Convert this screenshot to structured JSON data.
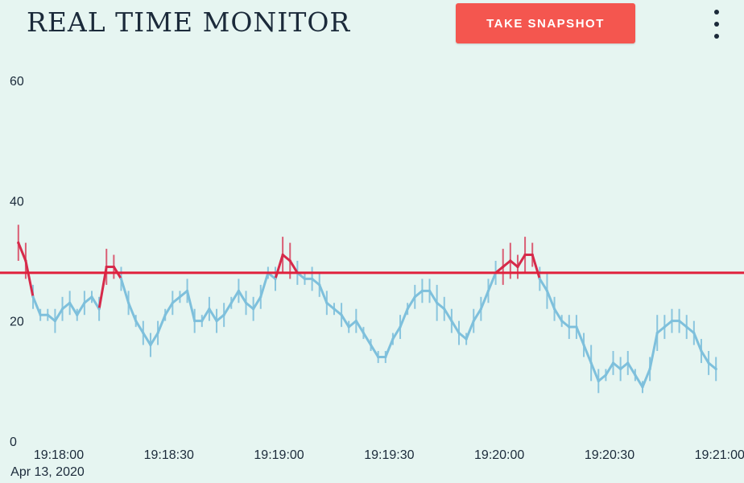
{
  "header": {
    "title": "REAL TIME MONITOR",
    "snapshot_label": "TAKE SNAPSHOT",
    "menu_icon": "vertical-dots-icon"
  },
  "colors": {
    "background": "#e6f5f1",
    "normal_series": "#7ec0dc",
    "alert_series": "#d62a4a",
    "threshold": "#e0203c",
    "button": "#f4564f"
  },
  "chart_data": {
    "type": "line",
    "ylim": [
      0,
      60
    ],
    "yticks": [
      0,
      20,
      40,
      60
    ],
    "xlim": [
      "19:17:44",
      "19:21:04"
    ],
    "xticks": [
      {
        "value": "19:18:00",
        "label": "19:18:00",
        "sublabel": "Apr 13, 2020"
      },
      {
        "value": "19:18:30",
        "label": "19:18:30",
        "sublabel": ""
      },
      {
        "value": "19:19:00",
        "label": "19:19:00",
        "sublabel": ""
      },
      {
        "value": "19:19:30",
        "label": "19:19:30",
        "sublabel": ""
      },
      {
        "value": "19:20:00",
        "label": "19:20:00",
        "sublabel": ""
      },
      {
        "value": "19:20:30",
        "label": "19:20:30",
        "sublabel": ""
      },
      {
        "value": "19:21:00",
        "label": "19:21:00",
        "sublabel": ""
      }
    ],
    "threshold": 28,
    "series": [
      {
        "x": [
          "19:17:49",
          "19:17:51",
          "19:17:53",
          "19:17:55",
          "19:17:57",
          "19:17:59",
          "19:18:01",
          "19:18:03",
          "19:18:05",
          "19:18:07",
          "19:18:09",
          "19:18:11",
          "19:18:13",
          "19:18:15",
          "19:18:17",
          "19:18:19",
          "19:18:21",
          "19:18:23",
          "19:18:25",
          "19:18:27",
          "19:18:29",
          "19:18:31",
          "19:18:33",
          "19:18:35",
          "19:18:37",
          "19:18:39",
          "19:18:41",
          "19:18:43",
          "19:18:45",
          "19:18:47",
          "19:18:49",
          "19:18:51",
          "19:18:53",
          "19:18:55",
          "19:18:57",
          "19:18:59",
          "19:19:01",
          "19:19:03",
          "19:19:05",
          "19:19:07",
          "19:19:09",
          "19:19:11",
          "19:19:13",
          "19:19:15",
          "19:19:17",
          "19:19:19",
          "19:19:21",
          "19:19:23",
          "19:19:25",
          "19:19:27",
          "19:19:29",
          "19:19:31",
          "19:19:33",
          "19:19:35",
          "19:19:37",
          "19:19:39",
          "19:19:41",
          "19:19:43",
          "19:19:45",
          "19:19:47",
          "19:19:49",
          "19:19:51",
          "19:19:53",
          "19:19:55",
          "19:19:57",
          "19:19:59",
          "19:20:01",
          "19:20:03",
          "19:20:05",
          "19:20:07",
          "19:20:09",
          "19:20:11",
          "19:20:13",
          "19:20:15",
          "19:20:17",
          "19:20:19",
          "19:20:21",
          "19:20:23",
          "19:20:25",
          "19:20:27",
          "19:20:29",
          "19:20:31",
          "19:20:33",
          "19:20:35",
          "19:20:37",
          "19:20:39",
          "19:20:41",
          "19:20:43",
          "19:20:45",
          "19:20:47",
          "19:20:49",
          "19:20:51",
          "19:20:53",
          "19:20:55",
          "19:20:57",
          "19:20:59"
        ],
        "y": [
          33,
          30,
          24,
          21,
          21,
          20,
          22,
          23,
          21,
          23,
          24,
          22,
          29,
          29,
          27,
          23,
          20,
          18,
          16,
          18,
          21,
          23,
          24,
          25,
          20,
          20,
          22,
          20,
          21,
          23,
          25,
          23,
          22,
          24,
          28,
          27,
          31,
          30,
          28,
          27,
          27,
          26,
          23,
          22,
          21,
          19,
          20,
          18,
          16,
          14,
          14,
          17,
          19,
          22,
          24,
          25,
          25,
          23,
          22,
          20,
          18,
          17,
          20,
          22,
          25,
          28,
          29,
          30,
          29,
          31,
          31,
          27,
          25,
          22,
          20,
          19,
          19,
          16,
          13,
          10,
          11,
          13,
          12,
          13,
          11,
          9,
          12,
          18,
          19,
          20,
          20,
          19,
          18,
          15,
          13,
          12
        ],
        "err": [
          3,
          3,
          2,
          1,
          1,
          2,
          2,
          2,
          1,
          2,
          1,
          2,
          3,
          2,
          2,
          2,
          1,
          2,
          2,
          2,
          1,
          2,
          1,
          2,
          2,
          1,
          2,
          2,
          2,
          1,
          2,
          2,
          2,
          2,
          1,
          2,
          3,
          3,
          2,
          1,
          2,
          2,
          2,
          1,
          2,
          1,
          2,
          1,
          1,
          1,
          1,
          1,
          2,
          1,
          2,
          2,
          2,
          3,
          2,
          2,
          2,
          1,
          2,
          2,
          2,
          2,
          3,
          3,
          2,
          3,
          2,
          2,
          3,
          2,
          1,
          2,
          2,
          2,
          3,
          2,
          1,
          2,
          2,
          2,
          1,
          1,
          2,
          3,
          2,
          2,
          2,
          2,
          2,
          2,
          2,
          2
        ]
      }
    ]
  }
}
